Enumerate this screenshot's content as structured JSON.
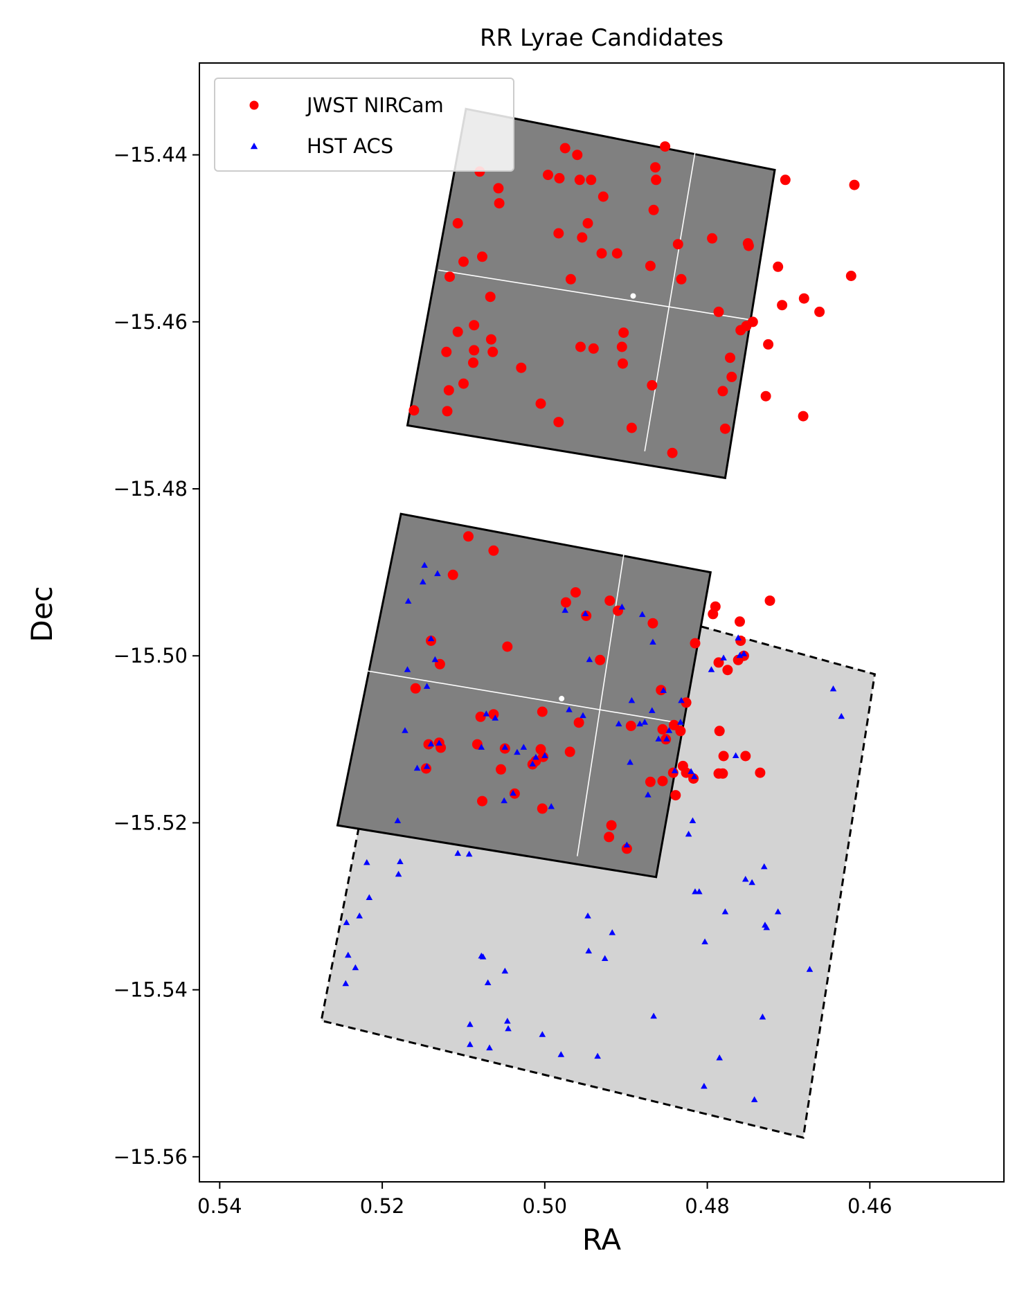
{
  "chart_data": {
    "type": "scatter",
    "title": "RR Lyrae Candidates",
    "xlabel": "RA",
    "ylabel": "Dec",
    "xlim": [
      0.5425,
      0.4435
    ],
    "ylim": [
      -15.563,
      -15.429
    ],
    "x_inverted": true,
    "xticks": [
      0.54,
      0.52,
      0.5,
      0.48,
      0.46
    ],
    "xtick_labels": [
      "0.54",
      "0.52",
      "0.50",
      "0.48",
      "0.46"
    ],
    "yticks": [
      -15.44,
      -15.46,
      -15.48,
      -15.5,
      -15.52,
      -15.54,
      -15.56
    ],
    "ytick_labels": [
      "−15.44",
      "−15.46",
      "−15.48",
      "−15.50",
      "−15.52",
      "−15.54",
      "−15.56"
    ],
    "grid": false,
    "legend_position": "top-left",
    "legend": [
      {
        "label": "JWST NIRCam",
        "marker": "circle",
        "color": "#ff0000"
      },
      {
        "label": "HST ACS",
        "marker": "triangle",
        "color": "#0000ff"
      }
    ],
    "footprints": [
      {
        "name": "jwst-upper",
        "fill": "#808080",
        "edge": "#000000",
        "style": "solid",
        "corners": [
          [
            0.5097,
            -15.4345
          ],
          [
            0.4717,
            -15.4418
          ],
          [
            0.4778,
            -15.4787
          ],
          [
            0.5169,
            -15.4724
          ]
        ],
        "gap_vertical": [
          [
            0.4813,
            -15.4385
          ],
          [
            0.4877,
            -15.4755
          ]
        ],
        "gap_horizontal": [
          [
            0.5131,
            -15.4538
          ],
          [
            0.4744,
            -15.4598
          ]
        ]
      },
      {
        "name": "jwst-lower",
        "fill": "#808080",
        "edge": "#000000",
        "style": "solid",
        "corners": [
          [
            0.5177,
            -15.483
          ],
          [
            0.4796,
            -15.49
          ],
          [
            0.4863,
            -15.5265
          ],
          [
            0.5255,
            -15.5203
          ]
        ],
        "gap_vertical": [
          [
            0.4901,
            -15.4867
          ],
          [
            0.496,
            -15.524
          ]
        ],
        "gap_horizontal": [
          [
            0.5219,
            -15.5018
          ],
          [
            0.4837,
            -15.508
          ]
        ]
      },
      {
        "name": "hst-acs",
        "fill": "#d3d3d3",
        "edge": "#000000",
        "style": "dashed",
        "corners": [
          [
            0.5162,
            -15.487
          ],
          [
            0.4594,
            -15.5022
          ],
          [
            0.4682,
            -15.5577
          ],
          [
            0.5275,
            -15.5437
          ]
        ]
      }
    ],
    "series": [
      {
        "name": "JWST NIRCam",
        "marker": "circle",
        "color": "#ff0000",
        "points": [
          [
            0.4975,
            -15.4392
          ],
          [
            0.496,
            -15.44
          ],
          [
            0.4852,
            -15.439
          ],
          [
            0.508,
            -15.442
          ],
          [
            0.4982,
            -15.4428
          ],
          [
            0.4996,
            -15.4424
          ],
          [
            0.4957,
            -15.443
          ],
          [
            0.4943,
            -15.443
          ],
          [
            0.4864,
            -15.4415
          ],
          [
            0.4863,
            -15.443
          ],
          [
            0.4704,
            -15.443
          ],
          [
            0.4619,
            -15.4436
          ],
          [
            0.5057,
            -15.444
          ],
          [
            0.4928,
            -15.445
          ],
          [
            0.5056,
            -15.4458
          ],
          [
            0.4866,
            -15.4466
          ],
          [
            0.5107,
            -15.4482
          ],
          [
            0.4947,
            -15.4482
          ],
          [
            0.4983,
            -15.4494
          ],
          [
            0.4954,
            -15.4499
          ],
          [
            0.4836,
            -15.4507
          ],
          [
            0.4794,
            -15.45
          ],
          [
            0.475,
            -15.4506
          ],
          [
            0.4749,
            -15.4509
          ],
          [
            0.51,
            -15.4528
          ],
          [
            0.5077,
            -15.4522
          ],
          [
            0.493,
            -15.4518
          ],
          [
            0.4911,
            -15.4518
          ],
          [
            0.487,
            -15.4533
          ],
          [
            0.4713,
            -15.4534
          ],
          [
            0.4623,
            -15.4545
          ],
          [
            0.5117,
            -15.4546
          ],
          [
            0.4968,
            -15.4549
          ],
          [
            0.4832,
            -15.4549
          ],
          [
            0.4708,
            -15.458
          ],
          [
            0.4681,
            -15.4572
          ],
          [
            0.4662,
            -15.4588
          ],
          [
            0.5067,
            -15.457
          ],
          [
            0.4786,
            -15.4588
          ],
          [
            0.4759,
            -15.461
          ],
          [
            0.4752,
            -15.4605
          ],
          [
            0.4744,
            -15.46
          ],
          [
            0.5107,
            -15.4612
          ],
          [
            0.5087,
            -15.4604
          ],
          [
            0.4903,
            -15.4613
          ],
          [
            0.5066,
            -15.4621
          ],
          [
            0.5087,
            -15.4634
          ],
          [
            0.5121,
            -15.4636
          ],
          [
            0.5064,
            -15.4636
          ],
          [
            0.4956,
            -15.463
          ],
          [
            0.494,
            -15.4632
          ],
          [
            0.4905,
            -15.463
          ],
          [
            0.4725,
            -15.4627
          ],
          [
            0.4772,
            -15.4643
          ],
          [
            0.5088,
            -15.4649
          ],
          [
            0.4904,
            -15.465
          ],
          [
            0.5029,
            -15.4655
          ],
          [
            0.477,
            -15.4666
          ],
          [
            0.51,
            -15.4674
          ],
          [
            0.4868,
            -15.4676
          ],
          [
            0.5118,
            -15.4682
          ],
          [
            0.4781,
            -15.4683
          ],
          [
            0.4728,
            -15.4689
          ],
          [
            0.5005,
            -15.4698
          ],
          [
            0.5161,
            -15.4706
          ],
          [
            0.512,
            -15.4707
          ],
          [
            0.4682,
            -15.4713
          ],
          [
            0.4983,
            -15.472
          ],
          [
            0.4893,
            -15.4727
          ],
          [
            0.4778,
            -15.4728
          ],
          [
            0.4843,
            -15.4757
          ],
          [
            0.5094,
            -15.4857
          ],
          [
            0.5063,
            -15.4874
          ],
          [
            0.5113,
            -15.4903
          ],
          [
            0.4962,
            -15.4924
          ],
          [
            0.4974,
            -15.4936
          ],
          [
            0.492,
            -15.4934
          ],
          [
            0.479,
            -15.4941
          ],
          [
            0.4723,
            -15.4934
          ],
          [
            0.4793,
            -15.495
          ],
          [
            0.491,
            -15.4946
          ],
          [
            0.4949,
            -15.4952
          ],
          [
            0.4867,
            -15.4961
          ],
          [
            0.476,
            -15.4959
          ],
          [
            0.5046,
            -15.4989
          ],
          [
            0.514,
            -15.4982
          ],
          [
            0.4815,
            -15.4985
          ],
          [
            0.4759,
            -15.4982
          ],
          [
            0.4762,
            -15.5005
          ],
          [
            0.4755,
            -15.5
          ],
          [
            0.5129,
            -15.501
          ],
          [
            0.4932,
            -15.5005
          ],
          [
            0.4786,
            -15.5008
          ],
          [
            0.4775,
            -15.5017
          ],
          [
            0.5159,
            -15.5039
          ],
          [
            0.4857,
            -15.5041
          ],
          [
            0.4826,
            -15.5056
          ],
          [
            0.5063,
            -15.507
          ],
          [
            0.5079,
            -15.5073
          ],
          [
            0.5003,
            -15.5067
          ],
          [
            0.4958,
            -15.508
          ],
          [
            0.4841,
            -15.5083
          ],
          [
            0.4894,
            -15.5084
          ],
          [
            0.4833,
            -15.509
          ],
          [
            0.4855,
            -15.5088
          ],
          [
            0.5143,
            -15.5106
          ],
          [
            0.5128,
            -15.511
          ],
          [
            0.513,
            -15.5104
          ],
          [
            0.5083,
            -15.5106
          ],
          [
            0.5049,
            -15.5111
          ],
          [
            0.4851,
            -15.51
          ],
          [
            0.4785,
            -15.509
          ],
          [
            0.5005,
            -15.5112
          ],
          [
            0.5002,
            -15.5121
          ],
          [
            0.4969,
            -15.5115
          ],
          [
            0.4842,
            -15.514
          ],
          [
            0.478,
            -15.512
          ],
          [
            0.4753,
            -15.512
          ],
          [
            0.483,
            -15.5132
          ],
          [
            0.4826,
            -15.514
          ],
          [
            0.5011,
            -15.5126
          ],
          [
            0.5015,
            -15.513
          ],
          [
            0.5054,
            -15.5136
          ],
          [
            0.4817,
            -15.5147
          ],
          [
            0.4735,
            -15.514
          ],
          [
            0.4855,
            -15.515
          ],
          [
            0.4839,
            -15.5167
          ],
          [
            0.487,
            -15.5151
          ],
          [
            0.5037,
            -15.5165
          ],
          [
            0.5077,
            -15.5174
          ],
          [
            0.5003,
            -15.5183
          ],
          [
            0.4918,
            -15.5203
          ],
          [
            0.4921,
            -15.5217
          ],
          [
            0.5146,
            -15.5135
          ],
          [
            0.4781,
            -15.5141
          ],
          [
            0.4786,
            -15.5141
          ],
          [
            0.4899,
            -15.5231
          ]
        ]
      },
      {
        "name": "HST ACS",
        "marker": "triangle",
        "color": "#0000ff",
        "points": [
          [
            0.5148,
            -15.4892
          ],
          [
            0.5132,
            -15.4902
          ],
          [
            0.515,
            -15.4912
          ],
          [
            0.5168,
            -15.4935
          ],
          [
            0.4975,
            -15.4946
          ],
          [
            0.4905,
            -15.4942
          ],
          [
            0.495,
            -15.495
          ],
          [
            0.488,
            -15.4951
          ],
          [
            0.4867,
            -15.4984
          ],
          [
            0.514,
            -15.498
          ],
          [
            0.4762,
            -15.4979
          ],
          [
            0.5135,
            -15.5005
          ],
          [
            0.4945,
            -15.5005
          ],
          [
            0.478,
            -15.5003
          ],
          [
            0.476,
            -15.5
          ],
          [
            0.4755,
            -15.4998
          ],
          [
            0.5169,
            -15.5017
          ],
          [
            0.4795,
            -15.5017
          ],
          [
            0.5145,
            -15.5037
          ],
          [
            0.4645,
            -15.504
          ],
          [
            0.4854,
            -15.5042
          ],
          [
            0.4893,
            -15.5054
          ],
          [
            0.4832,
            -15.5054
          ],
          [
            0.497,
            -15.5065
          ],
          [
            0.5072,
            -15.507
          ],
          [
            0.4953,
            -15.5072
          ],
          [
            0.4868,
            -15.5066
          ],
          [
            0.4635,
            -15.5073
          ],
          [
            0.5061,
            -15.5075
          ],
          [
            0.4909,
            -15.5082
          ],
          [
            0.4883,
            -15.5082
          ],
          [
            0.4877,
            -15.508
          ],
          [
            0.5172,
            -15.509
          ],
          [
            0.4847,
            -15.509
          ],
          [
            0.4833,
            -15.508
          ],
          [
            0.514,
            -15.5106
          ],
          [
            0.513,
            -15.5105
          ],
          [
            0.5078,
            -15.511
          ],
          [
            0.5049,
            -15.511
          ],
          [
            0.5026,
            -15.511
          ],
          [
            0.5034,
            -15.5116
          ],
          [
            0.485,
            -15.51
          ],
          [
            0.486,
            -15.51
          ],
          [
            0.5,
            -15.512
          ],
          [
            0.5011,
            -15.5122
          ],
          [
            0.5015,
            -15.513
          ],
          [
            0.4765,
            -15.512
          ],
          [
            0.4895,
            -15.5128
          ],
          [
            0.5157,
            -15.5135
          ],
          [
            0.5145,
            -15.5133
          ],
          [
            0.484,
            -15.5138
          ],
          [
            0.482,
            -15.5139
          ],
          [
            0.4816,
            -15.5145
          ],
          [
            0.5039,
            -15.5165
          ],
          [
            0.505,
            -15.5174
          ],
          [
            0.4992,
            -15.5181
          ],
          [
            0.4873,
            -15.5167
          ],
          [
            0.5181,
            -15.5198
          ],
          [
            0.4818,
            -15.5198
          ],
          [
            0.4823,
            -15.5214
          ],
          [
            0.5107,
            -15.5237
          ],
          [
            0.5093,
            -15.5238
          ],
          [
            0.4899,
            -15.5227
          ],
          [
            0.5219,
            -15.5248
          ],
          [
            0.5178,
            -15.5247
          ],
          [
            0.518,
            -15.5262
          ],
          [
            0.473,
            -15.5253
          ],
          [
            0.4753,
            -15.5268
          ],
          [
            0.4745,
            -15.5272
          ],
          [
            0.481,
            -15.5283
          ],
          [
            0.4815,
            -15.5283
          ],
          [
            0.5216,
            -15.529
          ],
          [
            0.5228,
            -15.5312
          ],
          [
            0.5244,
            -15.532
          ],
          [
            0.4947,
            -15.5312
          ],
          [
            0.4778,
            -15.5307
          ],
          [
            0.4713,
            -15.5307
          ],
          [
            0.4729,
            -15.5323
          ],
          [
            0.4727,
            -15.5326
          ],
          [
            0.4917,
            -15.5332
          ],
          [
            0.4803,
            -15.5343
          ],
          [
            0.5242,
            -15.5359
          ],
          [
            0.5078,
            -15.536
          ],
          [
            0.5076,
            -15.5361
          ],
          [
            0.4946,
            -15.5354
          ],
          [
            0.4926,
            -15.5363
          ],
          [
            0.5233,
            -15.5374
          ],
          [
            0.5049,
            -15.5378
          ],
          [
            0.4674,
            -15.5376
          ],
          [
            0.5245,
            -15.5393
          ],
          [
            0.507,
            -15.5392
          ],
          [
            0.4866,
            -15.5432
          ],
          [
            0.5046,
            -15.5438
          ],
          [
            0.5092,
            -15.5442
          ],
          [
            0.5045,
            -15.5447
          ],
          [
            0.4732,
            -15.5433
          ],
          [
            0.5003,
            -15.5454
          ],
          [
            0.5092,
            -15.5466
          ],
          [
            0.5068,
            -15.547
          ],
          [
            0.498,
            -15.5478
          ],
          [
            0.4935,
            -15.548
          ],
          [
            0.4785,
            -15.5482
          ],
          [
            0.4804,
            -15.5516
          ],
          [
            0.4742,
            -15.5532
          ]
        ]
      }
    ]
  }
}
